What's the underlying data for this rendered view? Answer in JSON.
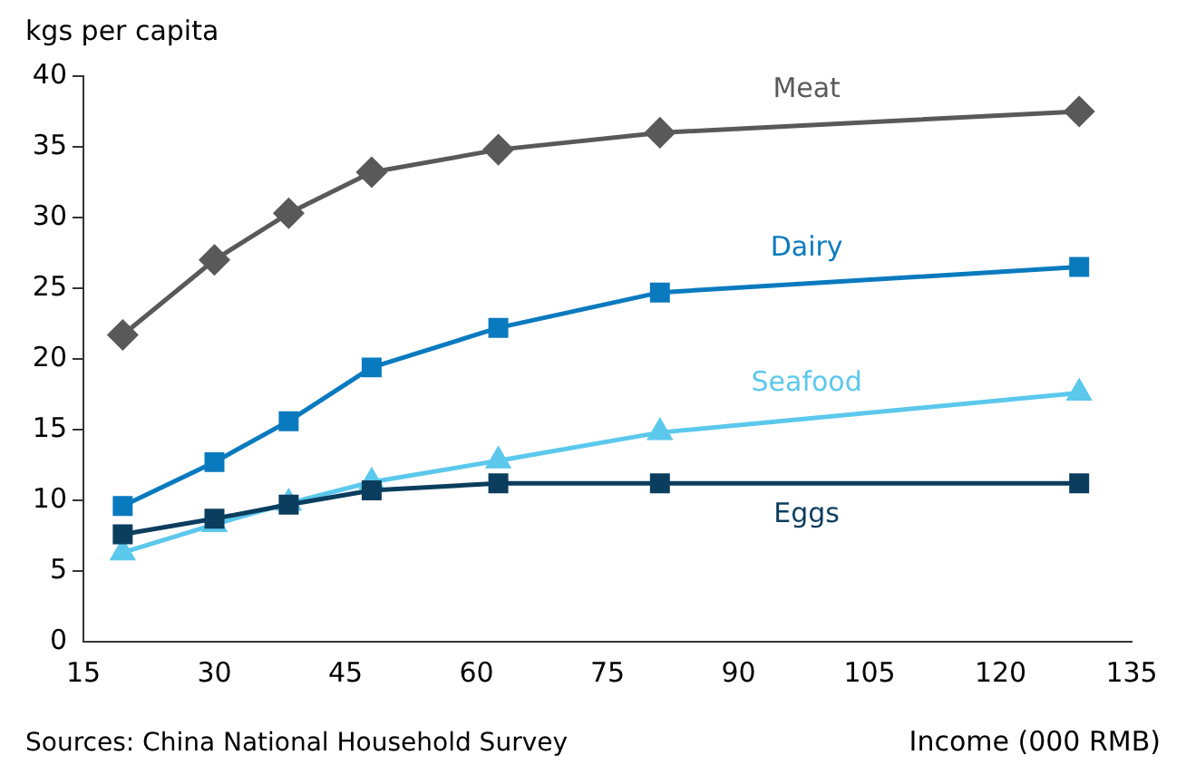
{
  "chart_data": {
    "type": "line",
    "ylabel": "kgs per capita",
    "xlabel": "Income (000 RMB)",
    "annotations": [
      "Sources: China National Household Survey"
    ],
    "x": [
      19.5,
      30,
      38.5,
      48,
      62.5,
      81,
      129
    ],
    "xlim": [
      15,
      135
    ],
    "xticks": [
      15,
      30,
      45,
      60,
      75,
      90,
      105,
      120,
      135
    ],
    "ylim": [
      0,
      40
    ],
    "yticks": [
      0,
      5,
      10,
      15,
      20,
      25,
      30,
      35,
      40
    ],
    "grid": false,
    "legend": false,
    "series": [
      {
        "name": "Meat",
        "color": "#595959",
        "marker": "diamond",
        "values": [
          21.7,
          27,
          30.3,
          33.2,
          34.8,
          36,
          37.5
        ]
      },
      {
        "name": "Dairy",
        "color": "#0a7abf",
        "marker": "square",
        "values": [
          9.6,
          12.7,
          15.6,
          19.4,
          22.2,
          24.7,
          26.5
        ]
      },
      {
        "name": "Seafood",
        "color": "#5bc8ec",
        "marker": "triangle",
        "values": [
          6.3,
          8.3,
          9.8,
          11.3,
          12.8,
          14.8,
          17.6
        ]
      },
      {
        "name": "Eggs",
        "color": "#0b3d5e",
        "marker": "square",
        "values": [
          7.6,
          8.7,
          9.7,
          10.7,
          11.2,
          11.2,
          11.2
        ]
      }
    ]
  }
}
